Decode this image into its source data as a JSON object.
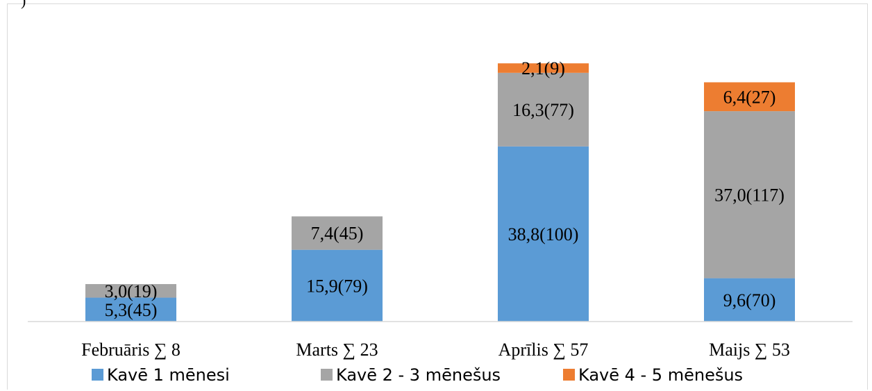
{
  "chart_data": {
    "type": "bar",
    "stacked": true,
    "categories": [
      "Februāris ∑ 8",
      "Marts ∑ 23",
      "Aprīlis ∑ 57",
      "Maijs ∑ 53"
    ],
    "series": [
      {
        "name": "Kavē 1 mēnesi",
        "color": "#5b9bd5",
        "values": [
          5.3,
          15.9,
          38.8,
          9.6
        ],
        "labels": [
          "5,3(45)",
          "15,9(79)",
          "38,8(100)",
          "9,6(70)"
        ]
      },
      {
        "name": "Kavē 2 - 3 mēnešus",
        "color": "#a5a5a5",
        "values": [
          3.0,
          7.4,
          16.3,
          37.0
        ],
        "labels": [
          "3,0(19)",
          "7,4(45)",
          "16,3(77)",
          "37,0(117)"
        ]
      },
      {
        "name": "Kavē 4 - 5 mēnešus",
        "color": "#ed7d31",
        "values": [
          0,
          0,
          2.1,
          6.4
        ],
        "labels": [
          "",
          "",
          "2,1(9)",
          "6,4(27)"
        ]
      }
    ],
    "legend_position": "bottom",
    "grid": false
  },
  "corner_text": ")"
}
